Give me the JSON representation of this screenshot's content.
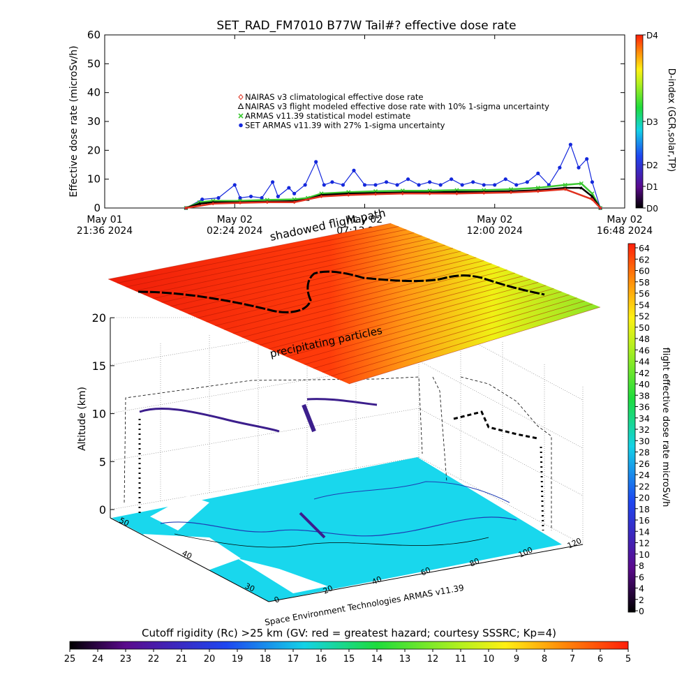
{
  "chart_data": [
    {
      "type": "scatter",
      "title": "SET_RAD_FM7010  B77W Tail#? effective dose rate",
      "ylabel": "Effective dose rate (microSv/h)",
      "ylim": [
        0,
        60
      ],
      "yticks": [
        "0",
        "10",
        "20",
        "30",
        "40",
        "50",
        "60"
      ],
      "xticks": [
        {
          "l1": "May 01",
          "l2": "21:36 2024"
        },
        {
          "l1": "May 02",
          "l2": "02:24 2024"
        },
        {
          "l1": "May 02",
          "l2": "07:12 2024"
        },
        {
          "l1": "May 02",
          "l2": "12:00 2024"
        },
        {
          "l1": "May 02",
          "l2": "16:48 2024"
        }
      ],
      "right_axis": {
        "label": "D-index (GCR,solar,TP)",
        "ticks": [
          "D4",
          "D3",
          "D2",
          "D1",
          "D0"
        ],
        "tick_dose": [
          60,
          30,
          15,
          7.5,
          0
        ]
      },
      "legend": [
        {
          "name": "NAIRAS v3 climatological effective dose rate",
          "color": "#e0301e",
          "marker": "diamond"
        },
        {
          "name": "NAIRAS v3 flight modeled effective dose rate with 10% 1-sigma uncertainty",
          "color": "#000000",
          "marker": "triangle"
        },
        {
          "name": "ARMAS v11.39 statistical model estimate",
          "color": "#3cc832",
          "marker": "x"
        },
        {
          "name": "SET ARMAS v11.39 with 27% 1-sigma uncertainty",
          "color": "#1428dc",
          "marker": "circle"
        }
      ],
      "legend_placement": "center-left",
      "series": [
        {
          "name": "SET ARMAS v11.39 with 27% 1-sigma uncertainty",
          "x_hours": [
            3.0,
            3.6,
            4.2,
            4.8,
            5.0,
            5.4,
            5.8,
            6.2,
            6.4,
            6.8,
            7.0,
            7.4,
            7.8,
            8.1,
            8.4,
            8.8,
            9.2,
            9.6,
            10.0,
            10.4,
            10.8,
            11.2,
            11.6,
            12.0,
            12.4,
            12.8,
            13.2,
            13.6,
            14.0,
            14.4,
            14.8,
            15.2,
            15.6,
            16.0,
            16.4,
            16.8,
            17.2,
            17.5,
            17.8,
            18.0,
            18.3
          ],
          "values": [
            0,
            3,
            3.5,
            8,
            3.5,
            4,
            3.5,
            9,
            4,
            7,
            5,
            8,
            16,
            8,
            9,
            8,
            13,
            8,
            8,
            9,
            8,
            10,
            8,
            9,
            8,
            10,
            8,
            9,
            8,
            8,
            10,
            8,
            9,
            12,
            8,
            14,
            22,
            14,
            17,
            9,
            0
          ]
        },
        {
          "name": "ARMAS v11.39 statistical model estimate",
          "x_hours": [
            3.0,
            3.5,
            4.0,
            5.0,
            6.0,
            7.0,
            7.5,
            8.0,
            9.0,
            10.0,
            11.0,
            12.0,
            13.0,
            14.0,
            15.0,
            16.0,
            17.0,
            17.6,
            18.0,
            18.3
          ],
          "values": [
            0,
            2,
            2.5,
            2.5,
            2.8,
            3,
            3.5,
            5,
            5.5,
            5.8,
            6,
            6,
            6.2,
            6.2,
            6.5,
            7,
            8,
            8.5,
            5,
            0
          ]
        },
        {
          "name": "NAIRAS v3 flight modeled effective dose rate with 10% 1-sigma uncertainty",
          "x_hours": [
            3.0,
            3.5,
            4.0,
            5.0,
            6.0,
            7.0,
            7.5,
            8.0,
            9.0,
            10.0,
            11.0,
            12.0,
            13.0,
            14.0,
            15.0,
            16.0,
            17.0,
            17.6,
            18.0,
            18.3
          ],
          "values": [
            0,
            1.5,
            2,
            2,
            2.2,
            2.4,
            3,
            4.5,
            5,
            5.2,
            5.4,
            5.4,
            5.6,
            5.6,
            5.8,
            6.2,
            7,
            7,
            4,
            0
          ]
        },
        {
          "name": "NAIRAS v3 climatological effective dose rate",
          "x_hours": [
            3.0,
            4.0,
            5.0,
            6.0,
            7.0,
            8.0,
            9.0,
            10.0,
            11.0,
            12.0,
            13.0,
            14.0,
            15.0,
            16.0,
            17.0,
            18.0,
            18.3
          ],
          "values": [
            0,
            1.5,
            1.8,
            2,
            2,
            4,
            4.5,
            4.8,
            5,
            5,
            5,
            5.2,
            5.4,
            5.8,
            6.5,
            3,
            0
          ]
        }
      ]
    },
    {
      "type": "scatter",
      "subtype": "3d-flight-path",
      "zlabel": "Altitude (km)",
      "zticks": [
        "0",
        "5",
        "10",
        "15",
        "20"
      ],
      "lat_ticks": [
        "50",
        "40",
        "30"
      ],
      "lon_ticks": [
        "0",
        "20",
        "40",
        "60",
        "80",
        "100",
        "120"
      ],
      "annotations": [
        "shadowed flight path",
        "precipitating particles"
      ],
      "colorbar": {
        "label": "flight effective dose rate microSv/h",
        "min": 0,
        "max": 64,
        "ticks": [
          "64",
          "62",
          "60",
          "58",
          "56",
          "54",
          "52",
          "50",
          "48",
          "46",
          "44",
          "42",
          "40",
          "38",
          "36",
          "34",
          "32",
          "30",
          "28",
          "26",
          "24",
          "22",
          "20",
          "18",
          "16",
          "14",
          "12",
          "10",
          "8",
          "6",
          "4",
          "2",
          "0"
        ]
      },
      "footer": "Space Environment Technologies ARMAS v11.39"
    },
    {
      "type": "heatmap",
      "subtype": "colorbar",
      "title": "Cutoff rigidity (Rc) >25 km (GV: red = greatest hazard; courtesy SSSRC; Kp=4)",
      "ticks": [
        "25",
        "24",
        "23",
        "22",
        "21",
        "20",
        "19",
        "18",
        "17",
        "16",
        "15",
        "14",
        "13",
        "12",
        "11",
        "10",
        "9",
        "8",
        "7",
        "6",
        "5"
      ]
    }
  ]
}
